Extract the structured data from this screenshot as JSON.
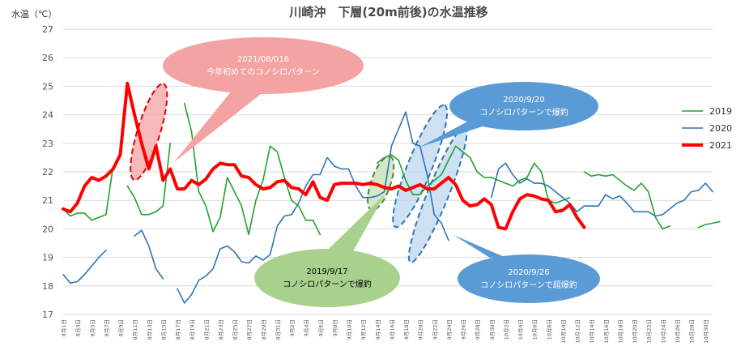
{
  "chart_data": {
    "type": "line",
    "title": "川崎沖　下層(20m前後)の水温推移",
    "ylabel": "水温（℃）",
    "xlabel": "",
    "ylim": [
      17,
      27
    ],
    "yticks": [
      17,
      18,
      19,
      20,
      21,
      22,
      23,
      24,
      25,
      26,
      27
    ],
    "grid": "horizontal",
    "legend_position": "right",
    "x_tick_labels": [
      "8月1日",
      "8月3日",
      "8月5日",
      "8月7日",
      "8月9日",
      "8月11日",
      "8月13日",
      "8月15日",
      "8月17日",
      "8月19日",
      "8月21日",
      "8月23日",
      "8月25日",
      "8月27日",
      "8月29日",
      "8月31日",
      "9月2日",
      "9月4日",
      "9月6日",
      "9月8日",
      "9月10日",
      "9月12日",
      "9月14日",
      "9月16日",
      "9月18日",
      "9月20日",
      "9月22日",
      "9月24日",
      "9月26日",
      "9月28日",
      "9月30日",
      "10月2日",
      "10月4日",
      "10月6日",
      "10月8日",
      "10月10日",
      "10月12日",
      "10月14日",
      "10月16日",
      "10月18日",
      "10月20日",
      "10月22日",
      "10月24日",
      "10月26日",
      "10月28日",
      "10月30日"
    ],
    "series": [
      {
        "name": "2019",
        "color": "#22a22e",
        "width": 1.6,
        "values": [
          20.7,
          20.45,
          20.55,
          20.55,
          20.3,
          20.4,
          20.5,
          22.2,
          null,
          21.5,
          21.1,
          20.5,
          20.5,
          20.6,
          20.8,
          23.0,
          null,
          24.4,
          23.4,
          21.3,
          20.8,
          19.9,
          20.4,
          21.8,
          21.3,
          20.8,
          19.8,
          21.0,
          21.7,
          22.9,
          22.7,
          21.8,
          21.0,
          20.8,
          20.3,
          20.3,
          19.8,
          null,
          null,
          null,
          null,
          null,
          null,
          null,
          22.3,
          22.5,
          22.6,
          22.4,
          21.7,
          21.2,
          21.2,
          21.5,
          21.7,
          21.9,
          22.4,
          22.9,
          22.7,
          22.5,
          22.0,
          21.8,
          21.8,
          21.7,
          21.6,
          21.5,
          21.7,
          21.8,
          22.3,
          22.0,
          21.0,
          20.9,
          21.0,
          21.1,
          null,
          22.0,
          21.85,
          21.9,
          21.85,
          21.9,
          21.7,
          21.5,
          21.35,
          21.6,
          21.3,
          20.4,
          20.0,
          20.1,
          null,
          null,
          null,
          20.05,
          20.15,
          20.2,
          20.25
        ]
      },
      {
        "name": "2020",
        "color": "#2e75b6",
        "width": 1.6,
        "values": [
          18.4,
          18.1,
          18.15,
          18.4,
          18.7,
          19.0,
          19.25,
          null,
          null,
          null,
          19.75,
          19.95,
          19.4,
          18.6,
          18.25,
          null,
          17.9,
          17.4,
          17.7,
          18.2,
          18.35,
          18.6,
          19.3,
          19.4,
          19.2,
          18.85,
          18.8,
          19.05,
          18.9,
          19.1,
          20.1,
          20.45,
          20.5,
          20.9,
          21.5,
          21.9,
          21.9,
          22.5,
          22.2,
          22.1,
          22.1,
          21.5,
          21.1,
          21.1,
          21.15,
          21.3,
          22.9,
          23.5,
          24.1,
          23.0,
          22.9,
          21.9,
          20.5,
          20.2,
          19.6,
          null,
          null,
          null,
          null,
          null,
          21.1,
          22.1,
          22.3,
          21.9,
          21.6,
          21.75,
          21.6,
          21.6,
          21.5,
          21.3,
          21.1,
          20.9,
          20.6,
          20.8,
          20.8,
          20.8,
          21.2,
          21.05,
          21.15,
          20.9,
          20.6,
          20.6,
          20.6,
          20.45,
          20.5,
          20.7,
          20.9,
          21.0,
          21.3,
          21.35,
          21.6,
          21.3
        ]
      },
      {
        "name": "2021",
        "color": "#ff0000",
        "width": 4,
        "values": [
          20.7,
          20.6,
          20.9,
          21.5,
          21.8,
          21.7,
          21.85,
          22.1,
          22.6,
          25.1,
          24.0,
          23.0,
          22.1,
          22.9,
          21.7,
          22.1,
          21.4,
          21.4,
          21.7,
          21.55,
          21.75,
          22.1,
          22.3,
          22.25,
          22.25,
          21.85,
          21.8,
          21.55,
          21.4,
          21.45,
          21.65,
          21.7,
          21.45,
          21.4,
          21.2,
          21.65,
          21.1,
          21.0,
          21.55,
          21.6,
          21.6,
          21.6,
          21.55,
          21.6,
          21.55,
          21.45,
          21.4,
          21.5,
          21.35,
          21.45,
          21.55,
          21.4,
          21.4,
          21.6,
          21.8,
          21.55,
          21.0,
          20.8,
          20.85,
          21.05,
          20.85,
          20.05,
          20.0,
          20.6,
          21.05,
          21.2,
          21.15,
          21.05,
          21.0,
          20.6,
          20.65,
          20.85,
          20.4,
          20.05
        ]
      }
    ],
    "annotations": [
      {
        "date": "2021/08/016",
        "text": "今年初めてのコノシロパターン",
        "fill": "#f4a3a3",
        "text_color": "#ffffff",
        "highlight_fill": "#f4a3a3",
        "highlight_stroke": "#e00000"
      },
      {
        "date": "2020/9/20",
        "text": "コノシロパターンで爆釣",
        "fill": "#5b9bd5",
        "text_color": "#ffffff",
        "highlight_fill": "#bdd7ee",
        "highlight_stroke": "#2e75b6"
      },
      {
        "date": "2019/9/17",
        "text": "コノシロパターンで爆釣",
        "fill": "#a9d18e",
        "text_color": "#000000",
        "highlight_fill": "#c5e0b4",
        "highlight_stroke": "#548235"
      },
      {
        "date": "2020/9/26",
        "text": "コノシロパターンで超爆釣",
        "fill": "#5b9bd5",
        "text_color": "#ffffff",
        "highlight_fill": "#bdd7ee",
        "highlight_stroke": "#2e75b6"
      }
    ]
  }
}
